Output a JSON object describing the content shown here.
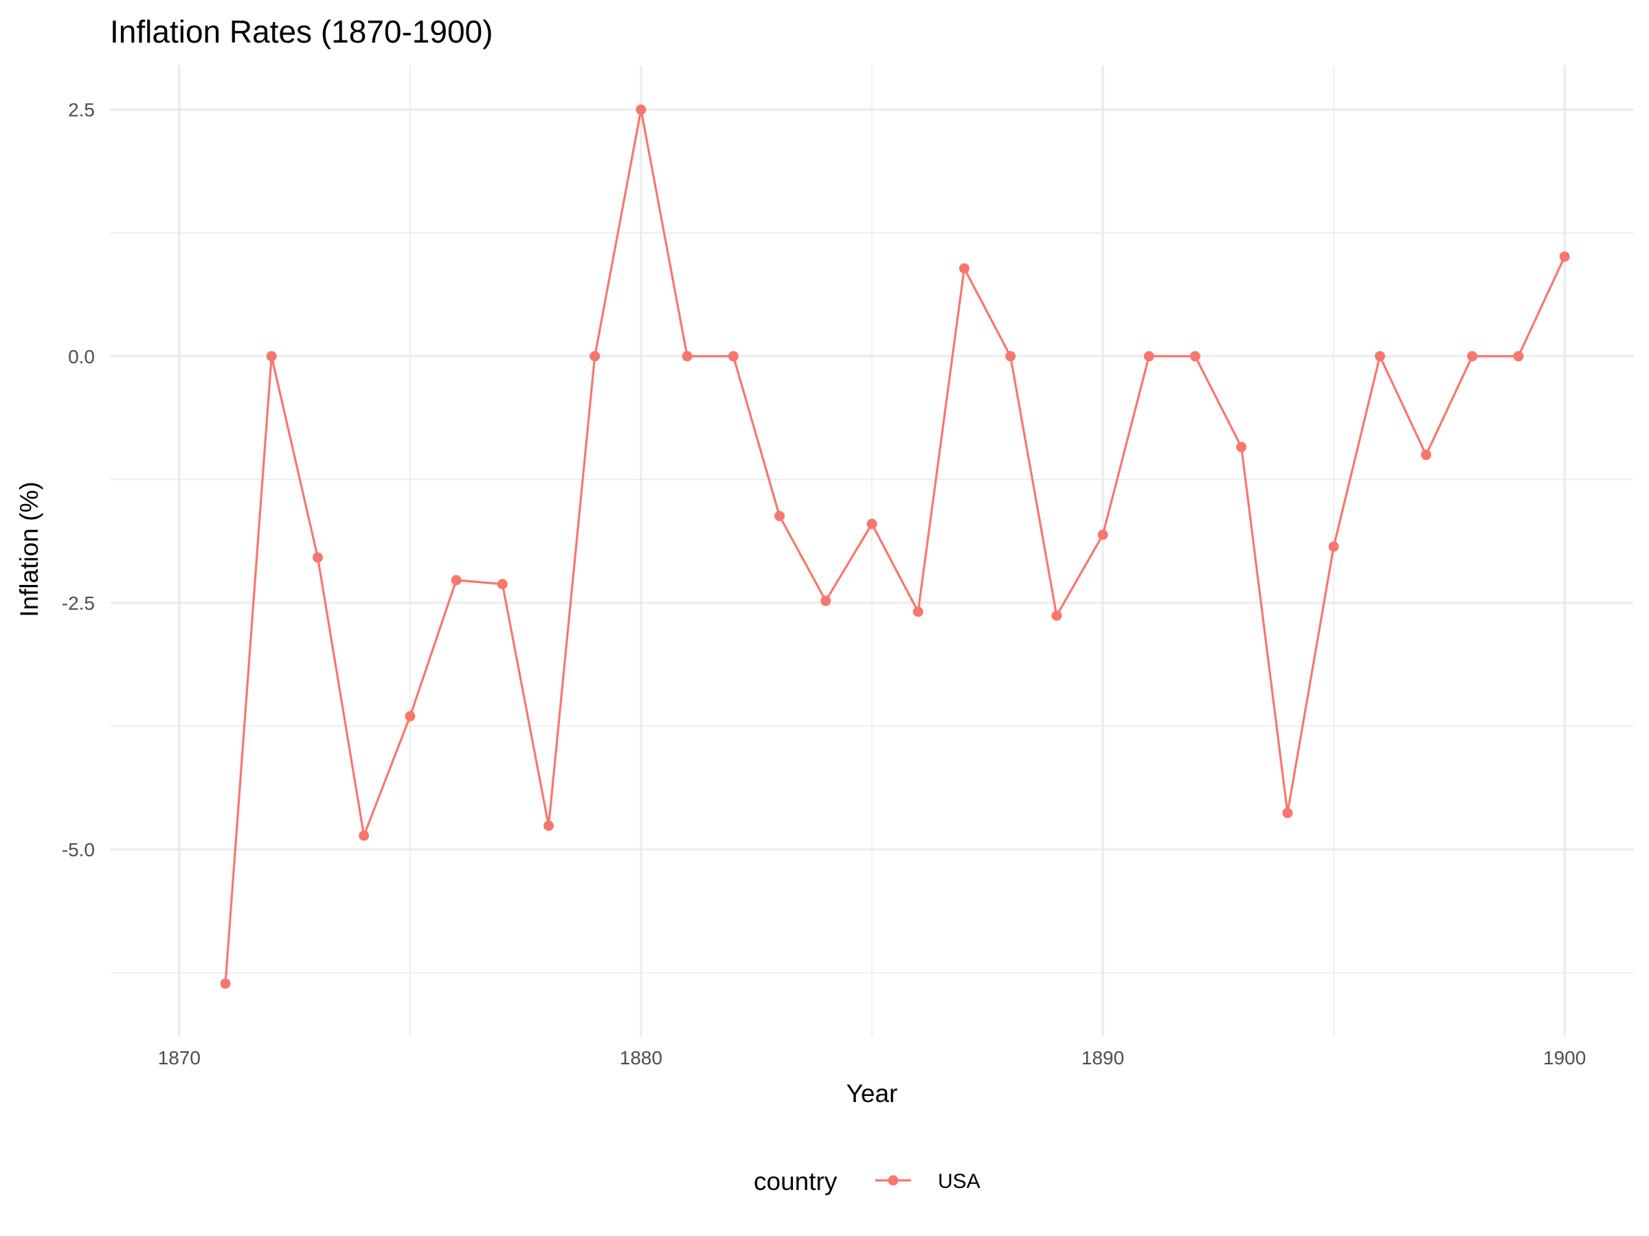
{
  "chart_data": {
    "type": "line",
    "title": "Inflation Rates (1870-1900)",
    "xlabel": "Year",
    "ylabel": "Inflation (%)",
    "x_ticks": [
      1870,
      1880,
      1890,
      1900
    ],
    "x_tick_labels": [
      "1870",
      "1880",
      "1890",
      "1900"
    ],
    "y_ticks": [
      2.5,
      0,
      -2.5,
      -5
    ],
    "y_tick_labels": [
      "2.5",
      "0.0",
      "-2.5",
      "-5.0"
    ],
    "xlim": [
      1868.5,
      1901.5
    ],
    "ylim": [
      -6.9,
      2.95
    ],
    "grid": true,
    "legend": {
      "title": "country",
      "position": "bottom"
    },
    "series": [
      {
        "name": "USA",
        "color": "#F8766D",
        "x": [
          1871,
          1872,
          1873,
          1874,
          1875,
          1876,
          1877,
          1878,
          1879,
          1880,
          1881,
          1882,
          1883,
          1884,
          1885,
          1886,
          1887,
          1888,
          1889,
          1890,
          1891,
          1892,
          1893,
          1894,
          1895,
          1896,
          1897,
          1898,
          1899,
          1900
        ],
        "values": [
          -6.36,
          0,
          -2.04,
          -4.86,
          -3.65,
          -2.27,
          -2.31,
          -4.76,
          0,
          2.5,
          0,
          0,
          -1.62,
          -2.48,
          -1.7,
          -2.59,
          0.89,
          0,
          -2.63,
          -1.81,
          0,
          0,
          -0.92,
          -4.63,
          -1.93,
          0,
          -1.0,
          0,
          0,
          1.01
        ]
      }
    ]
  }
}
